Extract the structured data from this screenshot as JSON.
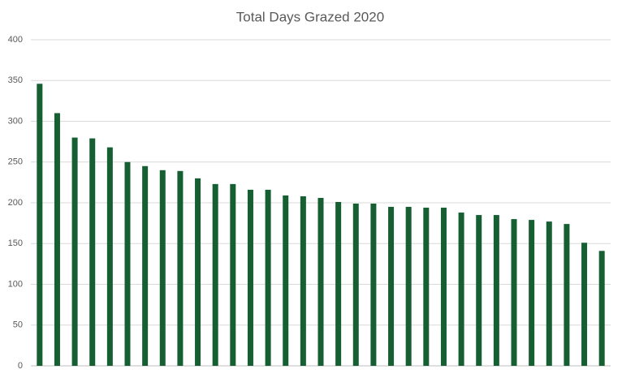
{
  "chart_data": {
    "type": "bar",
    "title": "Total Days Grazed 2020",
    "categories": [
      null,
      null,
      null,
      null,
      null,
      null,
      null,
      null,
      null,
      null,
      null,
      null,
      null,
      null,
      null,
      null,
      null,
      null,
      null,
      null,
      null,
      null,
      null,
      null,
      null,
      null,
      null,
      null,
      null,
      null,
      null,
      null,
      null
    ],
    "values": [
      346,
      310,
      280,
      279,
      268,
      250,
      245,
      240,
      239,
      230,
      223,
      223,
      216,
      216,
      209,
      208,
      206,
      201,
      199,
      199,
      195,
      195,
      194,
      194,
      188,
      185,
      185,
      180,
      179,
      177,
      174,
      151,
      141
    ],
    "color": "#155f32",
    "ylim": [
      0,
      400
    ],
    "yticks": [
      0,
      50,
      100,
      150,
      200,
      250,
      300,
      350,
      400
    ],
    "grid": true
  }
}
